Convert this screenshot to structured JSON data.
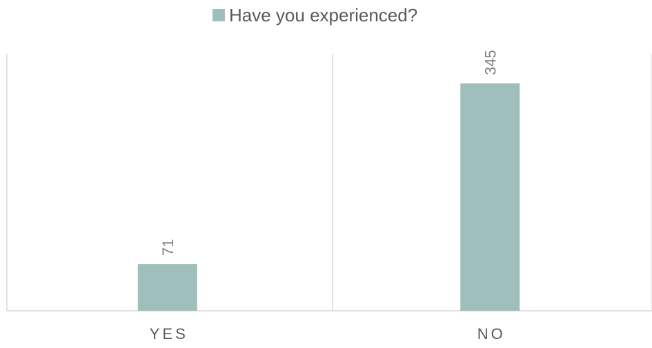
{
  "chart_data": {
    "type": "bar",
    "categories": [
      "YES",
      "NO"
    ],
    "series": [
      {
        "name": "Have you experienced?",
        "values": [
          71,
          345
        ],
        "data_labels": [
          "71",
          "345"
        ]
      }
    ],
    "ylim": [
      0,
      390
    ],
    "grid": false,
    "legend_position": "top",
    "colors": {
      "bar": "#9fbfbd",
      "axis_line": "#d9d9d9",
      "divider": "#d9d9d9"
    }
  }
}
